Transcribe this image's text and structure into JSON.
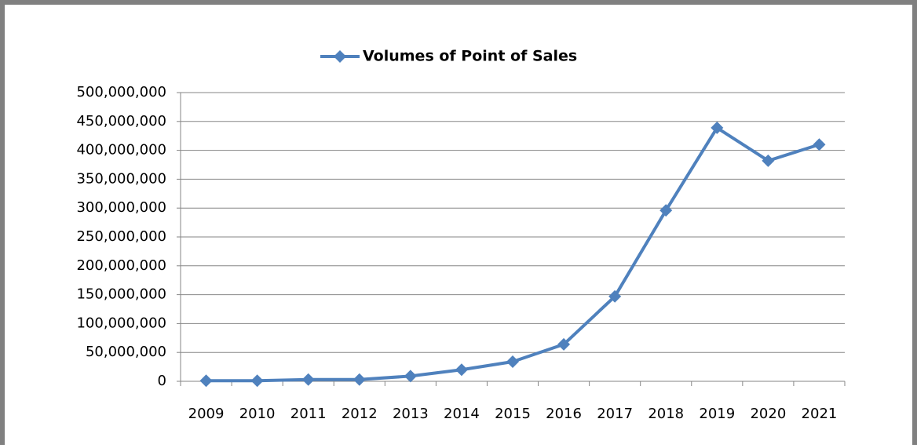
{
  "chart_data": {
    "type": "line",
    "categories": [
      "2009",
      "2010",
      "2011",
      "2012",
      "2013",
      "2014",
      "2015",
      "2016",
      "2017",
      "2018",
      "2019",
      "2020",
      "2021"
    ],
    "series": [
      {
        "name": "Volumes of Point of Sales",
        "color": "#4f81bd",
        "values": [
          1000000,
          1000000,
          3000000,
          3000000,
          9000000,
          20000000,
          34000000,
          64000000,
          147000000,
          296000000,
          439000000,
          382000000,
          410000000
        ]
      }
    ],
    "ylim": [
      0,
      500000000
    ],
    "yticks": [
      0,
      {
        "value": 50000000,
        "label": "50,000,000"
      },
      {
        "value": 100000000,
        "label": "100,000,000"
      },
      {
        "value": 150000000,
        "label": "150,000,000"
      },
      {
        "value": 200000000,
        "label": "200,000,000"
      },
      {
        "value": 250000000,
        "label": "250,000,000"
      },
      {
        "value": 300000000,
        "label": "300,000,000"
      },
      {
        "value": 350000000,
        "label": "350,000,000"
      },
      {
        "value": 400000000,
        "label": "400,000,000"
      },
      {
        "value": 450000000,
        "label": "450,000,000"
      },
      {
        "value": 500000000,
        "label": "500,000,000"
      }
    ],
    "grid": true,
    "legend": "top"
  }
}
